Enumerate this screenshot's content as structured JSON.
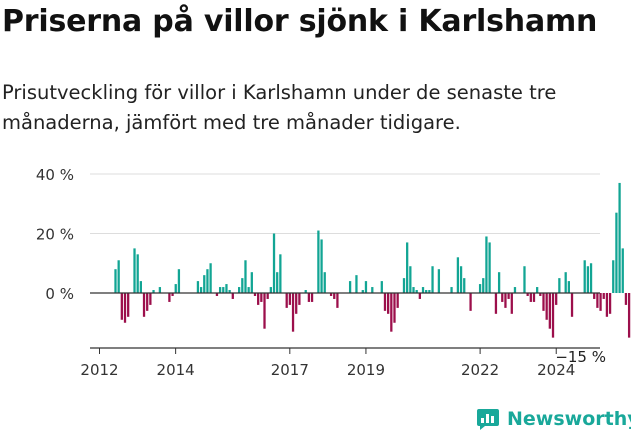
{
  "title": "Priserna på villor sjönk i Karlshamn",
  "subtitle": "Prisutveckling för villor i Karlshamn under de senaste tre månaderna, jämfört med tre månader tidigare.",
  "brand": {
    "name": "Newsworthy",
    "icon": "newsworthy-logo-icon",
    "color": "#19a89a"
  },
  "colors": {
    "positive": "#12a594",
    "negative": "#9c0f4b",
    "axis": "#333333",
    "grid": "#dddddd"
  },
  "chart_data": {
    "type": "bar",
    "xlabel": "",
    "ylabel": "",
    "ylim": [
      -18,
      42
    ],
    "yticks": [
      40,
      20,
      0
    ],
    "ytick_labels": [
      "40 %",
      "20 %",
      "0 %"
    ],
    "xticks": [
      2012,
      2014,
      2017,
      2019,
      2022,
      2024
    ],
    "xlim": [
      2011.75,
      2025.15
    ],
    "grid": true,
    "last_value_label": "−15 %",
    "x_start": 2012.42,
    "x_step": 0.0833,
    "values": [
      8,
      11,
      -9,
      -10,
      -8,
      0,
      15,
      13,
      4,
      -8,
      -6,
      -4,
      1,
      0,
      2,
      0,
      0,
      -3,
      -1,
      3,
      8,
      0,
      0,
      0,
      0,
      0,
      4,
      2,
      6,
      8,
      10,
      0,
      -1,
      2,
      2,
      3,
      1,
      -2,
      0,
      2,
      5,
      11,
      2,
      7,
      -1,
      -4,
      -3,
      -12,
      -2,
      2,
      20,
      7,
      13,
      0,
      -5,
      -4,
      -13,
      -7,
      -4,
      0,
      1,
      -3,
      -3,
      0,
      21,
      18,
      7,
      0,
      -1,
      -2,
      -5,
      0,
      0,
      0,
      4,
      0,
      6,
      0,
      1,
      4,
      0,
      2,
      0,
      0,
      4,
      -6,
      -7,
      -13,
      -10,
      -5,
      0,
      5,
      17,
      9,
      2,
      1,
      -2,
      2,
      1,
      1,
      9,
      0,
      8,
      0,
      0,
      0,
      2,
      0,
      12,
      9,
      5,
      0,
      -6,
      0,
      0,
      3,
      5,
      19,
      17,
      0,
      -7,
      7,
      -3,
      -5,
      -2,
      -7,
      2,
      0,
      0,
      9,
      -1,
      -3,
      -3,
      2,
      -1,
      -6,
      -9,
      -12,
      -15,
      -4,
      5,
      0,
      7,
      4,
      -8,
      0,
      0,
      0,
      11,
      9,
      10,
      -2,
      -5,
      -6,
      -2,
      -8,
      -7,
      11,
      27,
      37,
      15,
      -4,
      -15
    ]
  }
}
